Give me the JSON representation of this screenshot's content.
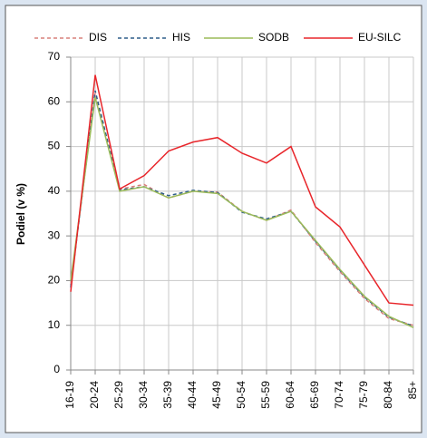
{
  "chart_data": {
    "type": "line",
    "categories": [
      "16-19",
      "20-24",
      "25-29",
      "30-34",
      "35-39",
      "40-44",
      "45-49",
      "50-54",
      "55-59",
      "60-64",
      "65-69",
      "70-74",
      "75-79",
      "80-84",
      "85+"
    ],
    "series": [
      {
        "name": "DIS",
        "color": "#d9807c",
        "dash": true,
        "values": [
          19,
          62,
          40.5,
          41.5,
          38.5,
          40,
          39.8,
          35.5,
          33.5,
          35.8,
          28.5,
          22,
          16,
          11.5,
          10
        ]
      },
      {
        "name": "HIS",
        "color": "#2e5f8a",
        "dash": true,
        "values": [
          18.5,
          62.5,
          40.3,
          41,
          39,
          40.2,
          39.7,
          35.3,
          33.8,
          35.5,
          28.8,
          22.3,
          16.3,
          11.8,
          9.8
        ]
      },
      {
        "name": "SODB",
        "color": "#9bbb59",
        "dash": false,
        "values": [
          20,
          61,
          40,
          41,
          38.5,
          40,
          39.5,
          35.5,
          33.5,
          35.5,
          29,
          22.5,
          16.5,
          12,
          9.5
        ]
      },
      {
        "name": "EU-SILC",
        "color": "#e8262b",
        "dash": false,
        "values": [
          17.5,
          66,
          40.5,
          43.5,
          49,
          51,
          52,
          48.5,
          46.3,
          50,
          36.5,
          32,
          23.5,
          15,
          14.5
        ]
      }
    ],
    "y_label": "Podiel (v %)",
    "ylim": [
      0,
      70
    ],
    "yticks": [
      0,
      10,
      20,
      30,
      40,
      50,
      60,
      70
    ],
    "grid": true,
    "legend": "top"
  }
}
